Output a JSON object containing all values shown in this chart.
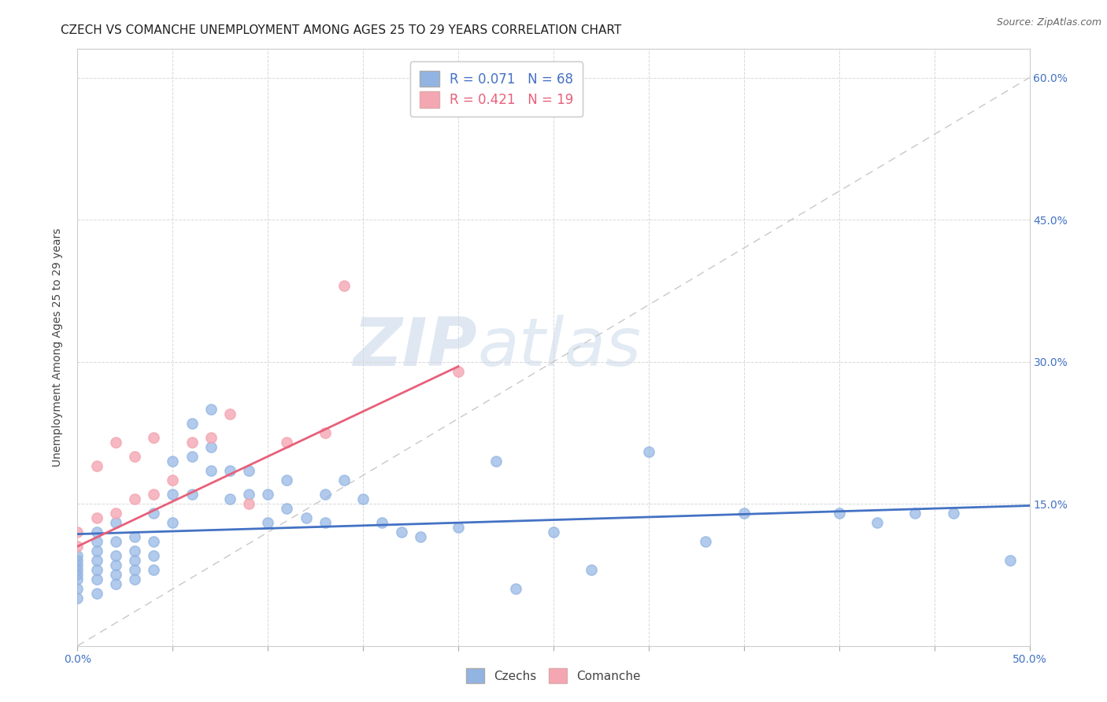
{
  "title": "CZECH VS COMANCHE UNEMPLOYMENT AMONG AGES 25 TO 29 YEARS CORRELATION CHART",
  "source": "Source: ZipAtlas.com",
  "ylabel": "Unemployment Among Ages 25 to 29 years",
  "xlim": [
    0.0,
    0.5
  ],
  "ylim": [
    0.0,
    0.63
  ],
  "xticks": [
    0.0,
    0.05,
    0.1,
    0.15,
    0.2,
    0.25,
    0.3,
    0.35,
    0.4,
    0.45,
    0.5
  ],
  "xticklabels": [
    "0.0%",
    "",
    "",
    "",
    "",
    "",
    "",
    "",
    "",
    "",
    "50.0%"
  ],
  "yticks": [
    0.0,
    0.15,
    0.3,
    0.45,
    0.6
  ],
  "yticklabels": [
    "",
    "15.0%",
    "30.0%",
    "45.0%",
    "60.0%"
  ],
  "czech_color": "#92b4e3",
  "comanche_color": "#f4a7b3",
  "czech_line_color": "#4472c4",
  "comanche_line_color": "#e8607a",
  "diagonal_line_color": "#c8c8c8",
  "background_color": "#ffffff",
  "grid_color": "#d8d8d8",
  "legend_r_czech": "R = 0.071",
  "legend_n_czech": "N = 68",
  "legend_r_comanche": "R = 0.421",
  "legend_n_comanche": "N = 19",
  "watermark_zip": "ZIP",
  "watermark_atlas": "atlas",
  "title_fontsize": 11,
  "label_fontsize": 10,
  "tick_fontsize": 10,
  "czechs_x": [
    0.0,
    0.0,
    0.0,
    0.0,
    0.0,
    0.0,
    0.0,
    0.0,
    0.01,
    0.01,
    0.01,
    0.01,
    0.01,
    0.01,
    0.01,
    0.02,
    0.02,
    0.02,
    0.02,
    0.02,
    0.02,
    0.03,
    0.03,
    0.03,
    0.03,
    0.03,
    0.04,
    0.04,
    0.04,
    0.04,
    0.05,
    0.05,
    0.05,
    0.06,
    0.06,
    0.06,
    0.07,
    0.07,
    0.07,
    0.08,
    0.08,
    0.09,
    0.09,
    0.1,
    0.1,
    0.11,
    0.11,
    0.12,
    0.13,
    0.13,
    0.14,
    0.15,
    0.16,
    0.17,
    0.18,
    0.2,
    0.22,
    0.23,
    0.25,
    0.27,
    0.3,
    0.33,
    0.35,
    0.4,
    0.42,
    0.44,
    0.46,
    0.49
  ],
  "czechs_y": [
    0.05,
    0.06,
    0.07,
    0.075,
    0.08,
    0.085,
    0.09,
    0.095,
    0.055,
    0.07,
    0.08,
    0.09,
    0.1,
    0.11,
    0.12,
    0.065,
    0.075,
    0.085,
    0.095,
    0.11,
    0.13,
    0.07,
    0.08,
    0.09,
    0.1,
    0.115,
    0.08,
    0.095,
    0.11,
    0.14,
    0.13,
    0.16,
    0.195,
    0.16,
    0.2,
    0.235,
    0.185,
    0.21,
    0.25,
    0.155,
    0.185,
    0.16,
    0.185,
    0.13,
    0.16,
    0.145,
    0.175,
    0.135,
    0.13,
    0.16,
    0.175,
    0.155,
    0.13,
    0.12,
    0.115,
    0.125,
    0.195,
    0.06,
    0.12,
    0.08,
    0.205,
    0.11,
    0.14,
    0.14,
    0.13,
    0.14,
    0.14,
    0.09
  ],
  "comanche_x": [
    0.0,
    0.0,
    0.01,
    0.01,
    0.02,
    0.02,
    0.03,
    0.03,
    0.04,
    0.04,
    0.05,
    0.06,
    0.07,
    0.08,
    0.09,
    0.11,
    0.13,
    0.14,
    0.2
  ],
  "comanche_y": [
    0.105,
    0.12,
    0.135,
    0.19,
    0.14,
    0.215,
    0.155,
    0.2,
    0.16,
    0.22,
    0.175,
    0.215,
    0.22,
    0.245,
    0.15,
    0.215,
    0.225,
    0.38,
    0.29
  ],
  "czech_line_x0": 0.0,
  "czech_line_x1": 0.5,
  "czech_line_y0": 0.118,
  "czech_line_y1": 0.148,
  "comanche_line_x0": 0.0,
  "comanche_line_x1": 0.2,
  "comanche_line_y0": 0.105,
  "comanche_line_y1": 0.295
}
